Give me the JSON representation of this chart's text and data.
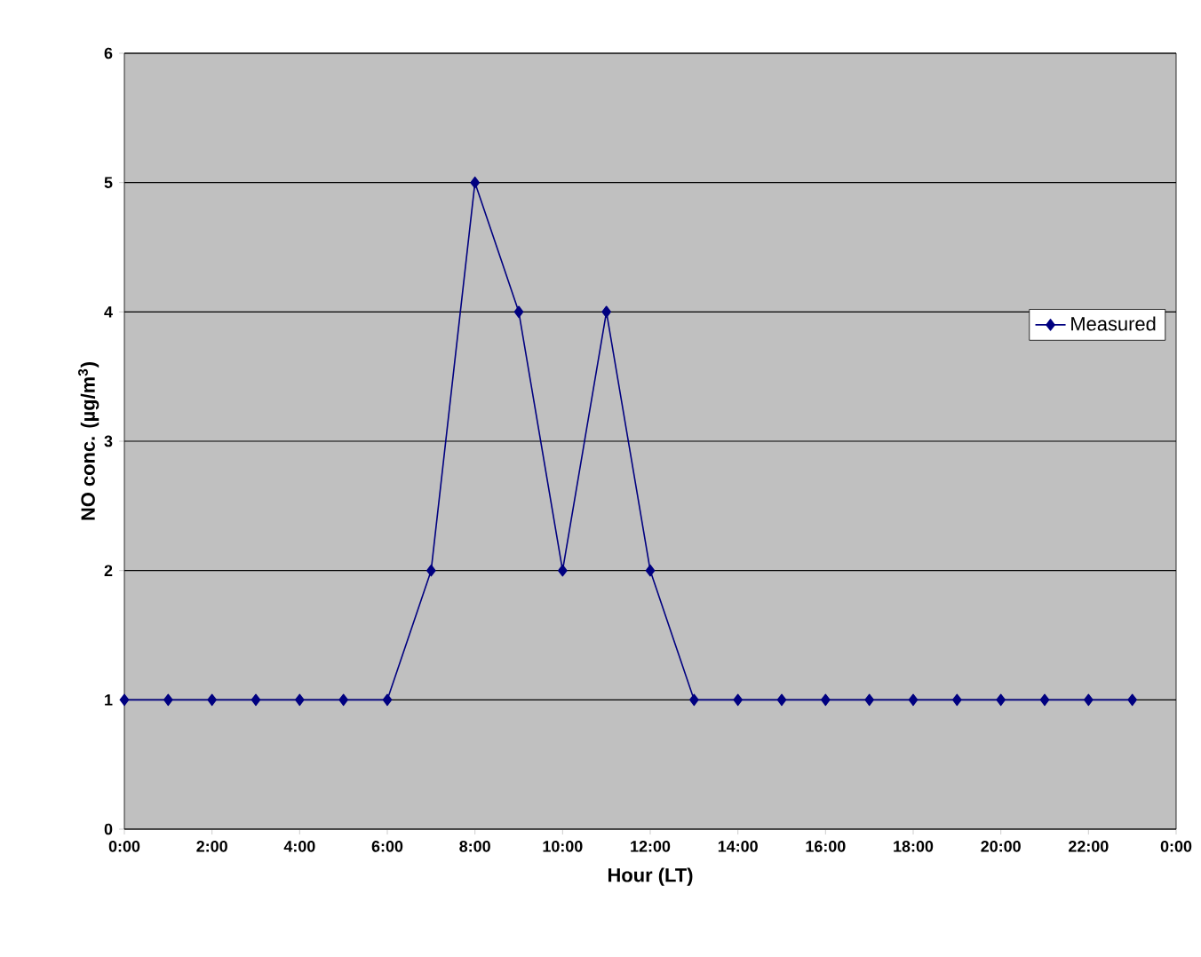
{
  "chart_data": {
    "type": "line",
    "xlabel": "Hour (LT)",
    "ylabel": "NO conc. (µg/m$^{3}$)",
    "x": [
      0,
      1,
      2,
      3,
      4,
      5,
      6,
      7,
      8,
      9,
      10,
      11,
      12,
      13,
      14,
      15,
      16,
      17,
      18,
      19,
      20,
      21,
      22,
      23
    ],
    "series": [
      {
        "name": "Measured",
        "color": "#000080",
        "values": [
          1,
          1,
          1,
          1,
          1,
          1,
          1,
          2,
          5,
          4,
          2,
          4,
          2,
          1,
          1,
          1,
          1,
          1,
          1,
          1,
          1,
          1,
          1,
          1
        ]
      }
    ],
    "xlim": [
      0,
      24
    ],
    "xticks": [
      {
        "value": 0,
        "label": "0:00"
      },
      {
        "value": 2,
        "label": "2:00"
      },
      {
        "value": 4,
        "label": "4:00"
      },
      {
        "value": 6,
        "label": "6:00"
      },
      {
        "value": 8,
        "label": "8:00"
      },
      {
        "value": 10,
        "label": "10:00"
      },
      {
        "value": 12,
        "label": "12:00"
      },
      {
        "value": 14,
        "label": "14:00"
      },
      {
        "value": 16,
        "label": "16:00"
      },
      {
        "value": 18,
        "label": "18:00"
      },
      {
        "value": 20,
        "label": "20:00"
      },
      {
        "value": 22,
        "label": "22:00"
      },
      {
        "value": 24,
        "label": "0:00"
      }
    ],
    "ylim": [
      0,
      6
    ],
    "yticks": [
      0,
      1,
      2,
      3,
      4,
      5,
      6
    ],
    "grid": "y",
    "legend": "right",
    "marker": "diamond",
    "line_style": "solid"
  }
}
